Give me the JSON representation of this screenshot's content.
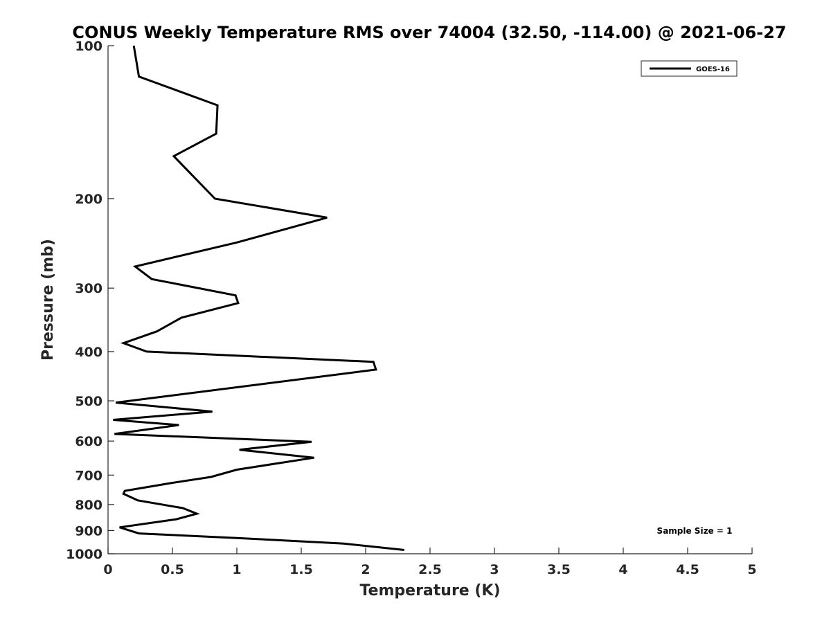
{
  "chart_data": {
    "type": "line",
    "title": "CONUS Weekly Temperature RMS over 74004 (32.50, -114.00) @ 2021-06-27",
    "xlabel": "Temperature (K)",
    "ylabel": "Pressure (mb)",
    "xlim": [
      0,
      5
    ],
    "ylim": [
      100,
      1000
    ],
    "y_scale": "log",
    "y_reversed": true,
    "grid": false,
    "legend_position": "top-right",
    "x_ticks": [
      "0",
      "0.5",
      "1",
      "1.5",
      "2",
      "2.5",
      "3",
      "3.5",
      "4",
      "4.5",
      "5"
    ],
    "y_ticks": [
      "100",
      "200",
      "300",
      "400",
      "500",
      "600",
      "700",
      "800",
      "900",
      "1000"
    ],
    "annotation": "Sample Size = 1",
    "line_color": "#000000",
    "series": [
      {
        "name": "GOES-16",
        "x": [
          0.2,
          0.24,
          0.85,
          0.84,
          0.51,
          0.83,
          1.7,
          1.0,
          0.21,
          0.34,
          0.99,
          1.01,
          0.57,
          0.38,
          0.12,
          0.3,
          2.06,
          2.08,
          0.06,
          0.81,
          0.04,
          0.55,
          0.05,
          1.58,
          1.02,
          1.6,
          1.0,
          0.8,
          0.5,
          0.13,
          0.12,
          0.23,
          0.58,
          0.69,
          0.53,
          0.09,
          0.24,
          1.0,
          1.83,
          2.3
        ],
        "y": [
          100,
          115,
          131,
          149,
          165,
          200,
          218,
          244,
          272,
          288,
          310,
          321,
          343,
          365,
          385,
          400,
          419,
          434,
          504,
          525,
          545,
          558,
          581,
          602,
          624,
          647,
          683,
          706,
          725,
          752,
          762,
          785,
          813,
          834,
          855,
          887,
          912,
          931,
          955,
          983
        ]
      }
    ]
  }
}
